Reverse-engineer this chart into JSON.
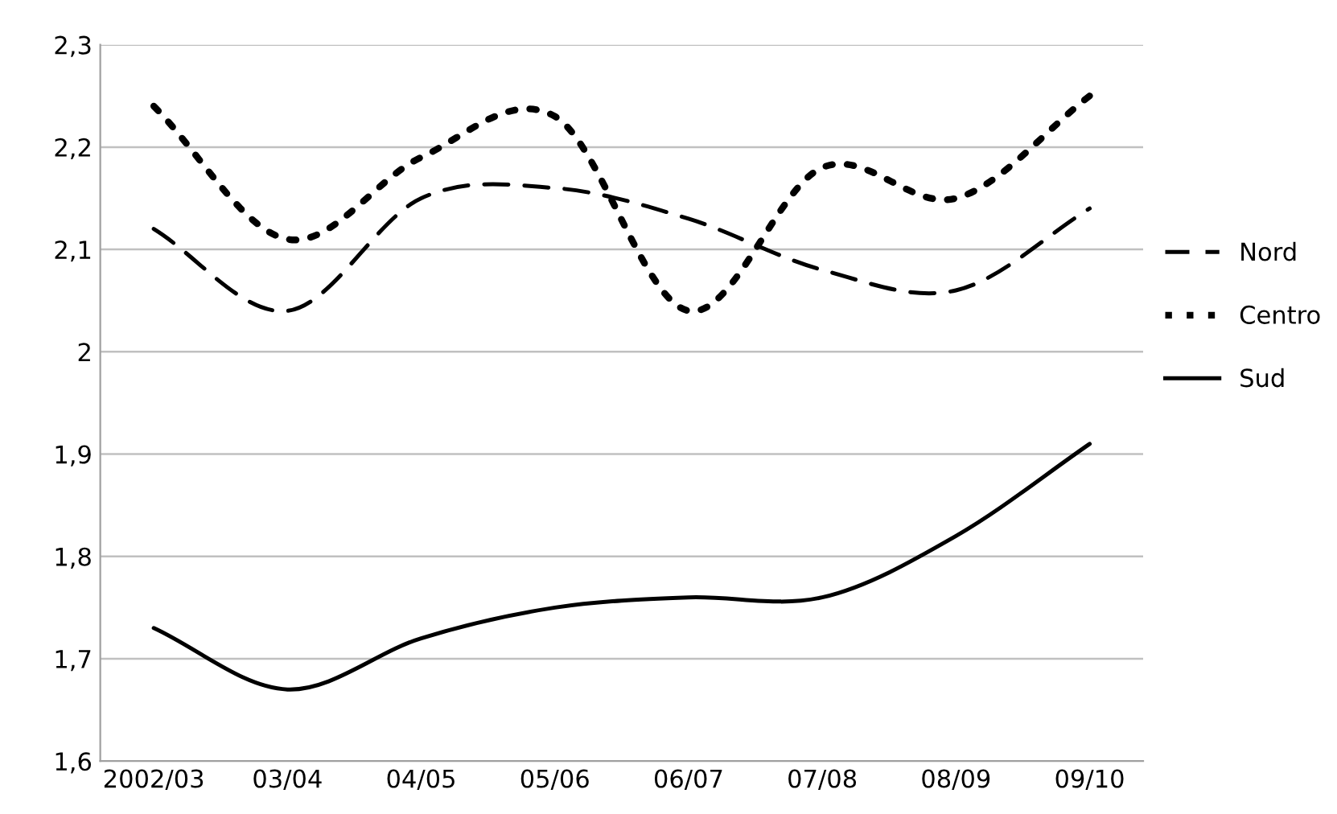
{
  "chart_data": {
    "type": "line",
    "categories": [
      "2002/03",
      "03/04",
      "04/05",
      "05/06",
      "06/07",
      "07/08",
      "08/09",
      "09/10"
    ],
    "series": [
      {
        "name": "Nord",
        "color": "#000000",
        "line_style": "dashed",
        "values": [
          2.12,
          2.04,
          2.15,
          2.16,
          2.13,
          2.08,
          2.06,
          2.14
        ]
      },
      {
        "name": "Centro",
        "color": "#000000",
        "line_style": "dotted",
        "values": [
          2.24,
          2.11,
          2.19,
          2.23,
          2.04,
          2.18,
          2.15,
          2.25
        ]
      },
      {
        "name": "Sud",
        "color": "#000000",
        "line_style": "solid",
        "values": [
          1.73,
          1.67,
          1.72,
          1.75,
          1.76,
          1.76,
          1.82,
          1.91
        ]
      }
    ],
    "ylim": [
      1.6,
      2.3
    ],
    "yticks": [
      {
        "value": 1.6,
        "label": "1,6"
      },
      {
        "value": 1.7,
        "label": "1,7"
      },
      {
        "value": 1.8,
        "label": "1,8"
      },
      {
        "value": 1.9,
        "label": "1,9"
      },
      {
        "value": 2.0,
        "label": "2"
      },
      {
        "value": 2.1,
        "label": "2,1"
      },
      {
        "value": 2.2,
        "label": "2,2"
      },
      {
        "value": 2.3,
        "label": "2,3"
      }
    ],
    "grid": "y",
    "legend": "right",
    "marker": "none"
  }
}
